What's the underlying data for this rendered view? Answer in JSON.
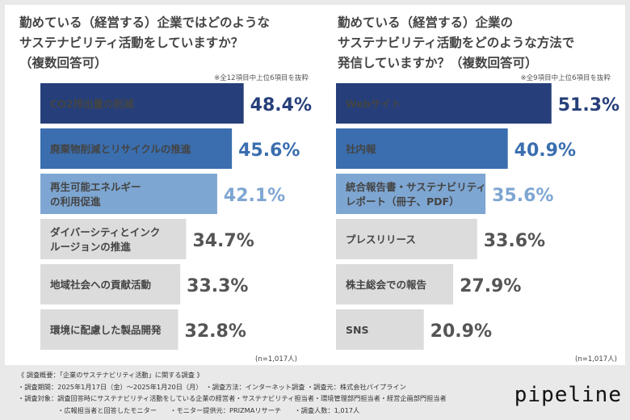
{
  "chart_data": [
    {
      "type": "bar",
      "orientation": "horizontal",
      "title": "勤めている（経営する）企業ではどのようなサステナビリティ活動をしていますか？（複数回答可）",
      "title_lines": [
        "勤めている（経営する）企業ではどのような",
        "サステナビリティ活動をしていますか？",
        "（複数回答可）"
      ],
      "note": "※全12項目中上位6項目を抜粋",
      "sample": "(n=1,017人)",
      "unit": "%",
      "xlim": [
        0,
        100
      ],
      "categories": [
        [
          "CO2排出量の削減"
        ],
        [
          "廃棄物削減とリサイクルの推進"
        ],
        [
          "再生可能エネルギー",
          "の利用促進"
        ],
        [
          "ダイバーシティとインク",
          "ルージョンの推進"
        ],
        [
          "地域社会への貢献活動"
        ],
        [
          "環境に配慮した製品開発"
        ]
      ],
      "values": [
        48.4,
        45.6,
        42.1,
        34.7,
        33.3,
        32.8
      ],
      "value_labels": [
        "48.4%",
        "45.6%",
        "42.1%",
        "34.7%",
        "33.3%",
        "32.8%"
      ],
      "bar_colors": [
        "#263f7a",
        "#3a6eaf",
        "#7ea6d2",
        "#dcdcdc",
        "#dcdcdc",
        "#dcdcdc"
      ],
      "value_colors": [
        "#263f7a",
        "#3a6eaf",
        "#7ea6d2",
        "#555555",
        "#555555",
        "#555555"
      ],
      "label_colors": [
        "#ffffff",
        "#ffffff",
        "#ffffff",
        "#444444",
        "#444444",
        "#444444"
      ]
    },
    {
      "type": "bar",
      "orientation": "horizontal",
      "title": "勤めている（経営する）企業のサステナビリティ活動をどのような方法で発信していますか？（複数回答可）",
      "title_lines": [
        "勤めている（経営する）企業の",
        "サステナビリティ活動をどのような方法で",
        "発信していますか？（複数回答可）"
      ],
      "note": "※全9項目中上位6項目を抜粋",
      "sample": "(n=1,017人)",
      "unit": "%",
      "xlim": [
        0,
        100
      ],
      "categories": [
        [
          "Webサイト"
        ],
        [
          "社内報"
        ],
        [
          "統合報告書・サステナビリティ",
          "レポート（冊子、PDF）"
        ],
        [
          "プレスリリース"
        ],
        [
          "株主総会での報告"
        ],
        [
          "SNS"
        ]
      ],
      "values": [
        51.3,
        40.9,
        35.6,
        33.6,
        27.9,
        20.9
      ],
      "value_labels": [
        "51.3%",
        "40.9%",
        "35.6%",
        "33.6%",
        "27.9%",
        "20.9%"
      ],
      "bar_colors": [
        "#263f7a",
        "#3a6eaf",
        "#7ea6d2",
        "#dcdcdc",
        "#dcdcdc",
        "#dcdcdc"
      ],
      "value_colors": [
        "#263f7a",
        "#3a6eaf",
        "#7ea6d2",
        "#555555",
        "#555555",
        "#555555"
      ],
      "label_colors": [
        "#ffffff",
        "#ffffff",
        "#ffffff",
        "#444444",
        "#444444",
        "#444444"
      ]
    }
  ],
  "footer": {
    "line1": "《 調査概要：「企業のサステナビリティ活動」に関する調査 》",
    "line2": "・調査期間：2025年1月17日（金）〜2025年1月20日（月）　・調査方法：インターネット調査 ・調査元：株式会社パイプライン",
    "line3": "・調査対象：調査回答時にサステナビリティ活動をしている企業の経営者・サステナビリティ担当者・環境管理部門担当者・経営企画部門担当者",
    "line4": "　　　　　　・広報担当者と回答したモニター　　・モニター提供元：PRIZMAリサーチ　　・調査人数：1,017人"
  },
  "logo": "pipeline"
}
